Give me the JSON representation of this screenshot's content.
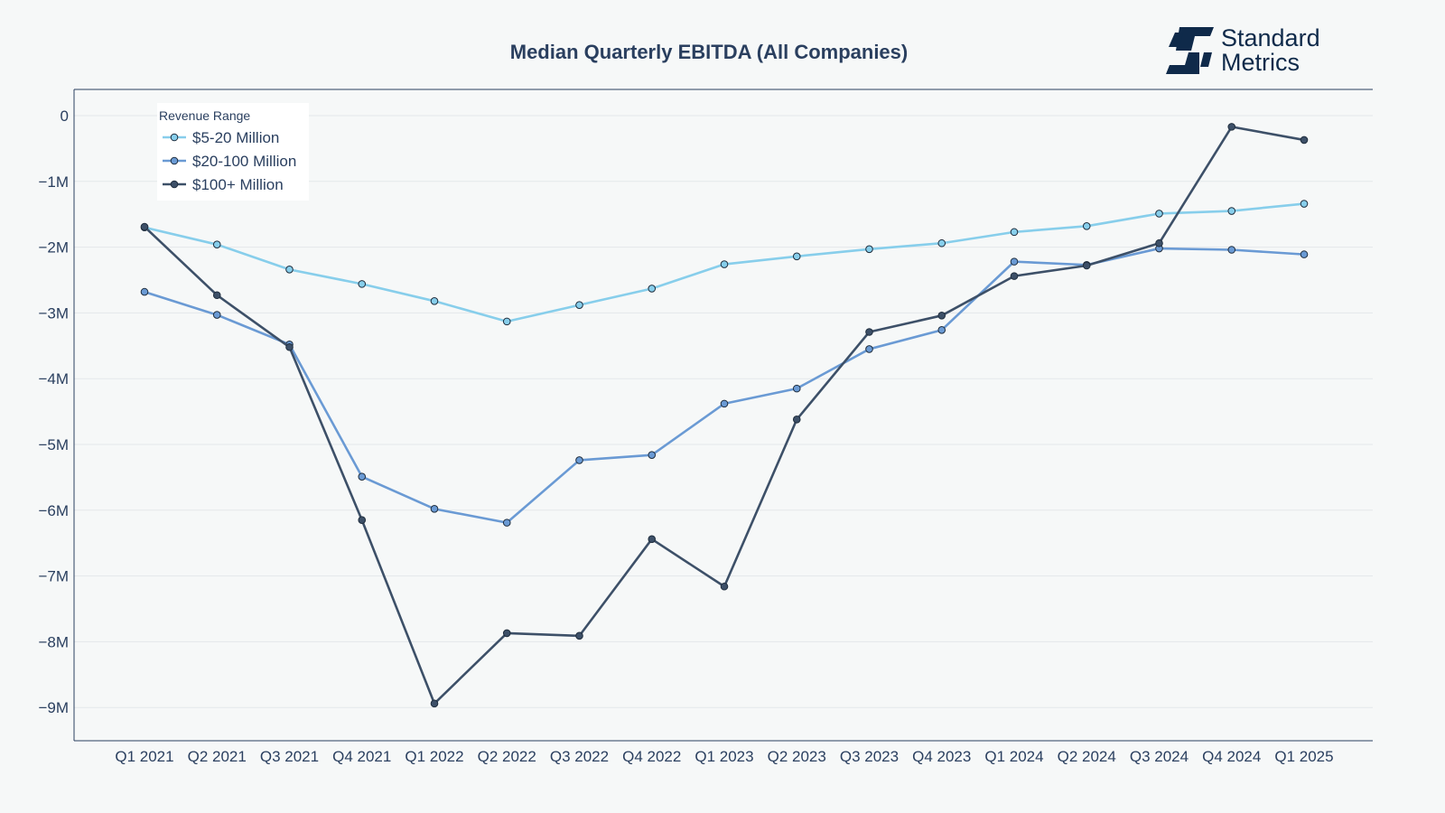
{
  "brand": {
    "line1": "Standard",
    "line2": "Metrics",
    "color": "#0f2a4a"
  },
  "chart_data": {
    "type": "line",
    "title": "Median Quarterly EBITDA (All Companies)",
    "xlabel": "",
    "ylabel": "",
    "categories": [
      "Q1 2021",
      "Q2 2021",
      "Q3 2021",
      "Q4 2021",
      "Q1 2022",
      "Q2 2022",
      "Q3 2022",
      "Q4 2022",
      "Q1 2023",
      "Q2 2023",
      "Q3 2023",
      "Q4 2023",
      "Q1 2024",
      "Q2 2024",
      "Q3 2024",
      "Q4 2024",
      "Q1 2025"
    ],
    "ylim": [
      -9.5,
      0.4
    ],
    "yticks": [
      0,
      -1,
      -2,
      -3,
      -4,
      -5,
      -6,
      -7,
      -8,
      -9
    ],
    "ytick_labels": [
      "0",
      "−1M",
      "−2M",
      "−3M",
      "−4M",
      "−5M",
      "−6M",
      "−7M",
      "−8M",
      "−9M"
    ],
    "y_unit": "millions",
    "grid": true,
    "legend": {
      "title": "Revenue Range",
      "position": "top-left"
    },
    "series": [
      {
        "name": "$5-20 Million",
        "color": "#87ceeb",
        "values": [
          -1.7,
          -1.96,
          -2.34,
          -2.56,
          -2.82,
          -3.13,
          -2.88,
          -2.63,
          -2.26,
          -2.14,
          -2.03,
          -1.94,
          -1.77,
          -1.68,
          -1.49,
          -1.45,
          -1.34
        ]
      },
      {
        "name": "$20-100 Million",
        "color": "#6a9ad4",
        "values": [
          -2.68,
          -3.03,
          -3.48,
          -5.49,
          -5.98,
          -6.19,
          -5.24,
          -5.16,
          -4.38,
          -4.15,
          -3.55,
          -3.26,
          -2.22,
          -2.27,
          -2.02,
          -2.04,
          -2.11
        ]
      },
      {
        "name": "$100+ Million",
        "color": "#3d5068",
        "values": [
          -1.69,
          -2.73,
          -3.52,
          -6.15,
          -8.94,
          -7.87,
          -7.91,
          -6.44,
          -7.16,
          -4.62,
          -3.29,
          -3.04,
          -2.44,
          -2.28,
          -1.94,
          -0.17,
          -0.37
        ]
      }
    ]
  }
}
